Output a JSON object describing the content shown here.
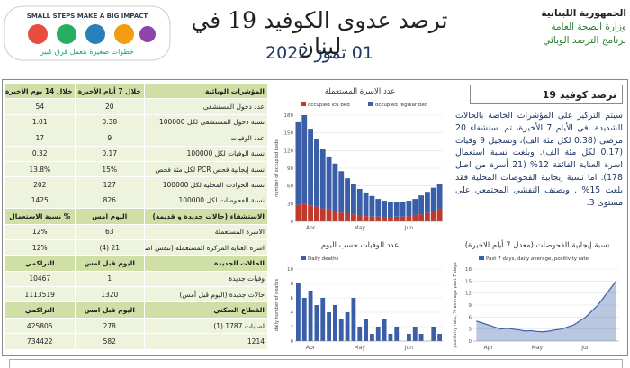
{
  "header": {
    "title": "ترصد عدوى الكوفيد 19 في لبنان",
    "date": "01 تموز 2022",
    "logo_right": [
      "الجمهورية اللبنانية",
      "وزارة الصحة العامة",
      "برنامج الترصد الوبائي"
    ],
    "logo_left": {
      "slogan": "SMALL STEPS MAKE A BIG IMPACT",
      "arabic": "خطوات صغيرة بتعمل فرق كبير"
    }
  },
  "table": {
    "sections": [
      {
        "header": [
          "المؤشرات الوبائية",
          "خلال 7 أيام الأخيرة",
          "خلال 14 يوم الأخيرة"
        ],
        "rows": [
          [
            "عدد دخول المستشفى",
            "20",
            "54"
          ],
          [
            "نسبة دخول المستشفى لكل 100000",
            "0.38",
            "1.01"
          ],
          [
            "عدد الوفيات",
            "9",
            "17"
          ],
          [
            "نسبة الوفيات لكل 100000",
            "0.17",
            "0.32"
          ],
          [
            "نسبة إيجابية فحص PCR لكل مئة فحص",
            "15%",
            "13.8%"
          ],
          [
            "نسبة الحوادث المحلية لكل 100000",
            "127",
            "202"
          ],
          [
            "نسبة الفحوصات لكل 100000",
            "826",
            "1425"
          ]
        ]
      },
      {
        "header": [
          "الاستشفاء (حالات جديدة و قديمة)",
          "اليوم امس",
          "% نسبة الاستعمال"
        ],
        "rows": [
          [
            "الاسرة المستعملة",
            "63",
            "12%"
          ],
          [
            "اسرة العناية المركزة المستعملة (تنفس اصطناعي)",
            "21 (4)",
            "12%"
          ]
        ]
      },
      {
        "header": [
          "الحالات الجديدة",
          "اليوم قبل امس",
          "التراكمي"
        ],
        "rows": [
          [
            "وفيات جديدة",
            "1",
            "10467"
          ],
          [
            "حالات جديدة (اليوم قبل أمس)",
            "1320",
            "1113519"
          ]
        ]
      },
      {
        "header": [
          "القطاع السكني",
          "اليوم قبل امس",
          "التراكمي"
        ],
        "rows": [
          [
            "اصابات 1787 (1)",
            "278",
            "425805"
          ],
          [
            "1214",
            "582",
            "734422"
          ]
        ]
      }
    ]
  },
  "summary": {
    "title": "ترصد كوفيد 19",
    "text": "سيتم التركيز على المؤشرات الخاصة بالحالات الشديدة. في الأيام 7 الأخيرة، تم استشفاء 20 مرضى (0.38 لكل مئة الف)، وتسجيل 9 وفيات (0.17 لكل مئة الف). وبلغت نسبة استعمال اسرة العناية الفائقة 12% (21 أسرة من اصل 178). اما نسبة إيجابية الفحوصات المحلية فقد بلغت 15% . ويصنف التفشي المجتمعي على مستوى 3."
  },
  "chart_data": [
    {
      "type": "stacked-bar",
      "title": "عدد الاسرة المستعملة",
      "y_label": "number of occupied beds",
      "categories": [
        null,
        null,
        "Apr",
        null,
        null,
        null,
        null,
        null,
        null,
        null,
        "May",
        null,
        null,
        null,
        null,
        null,
        null,
        null,
        "Jun",
        null,
        null,
        null,
        null,
        null
      ],
      "series": [
        {
          "name": "occupied icu bed",
          "color": "#c0392b",
          "values": [
            28,
            30,
            27,
            25,
            22,
            20,
            18,
            15,
            13,
            12,
            10,
            9,
            8,
            8,
            7,
            7,
            8,
            8,
            9,
            10,
            12,
            14,
            17,
            20
          ]
        },
        {
          "name": "occupied regular bed",
          "color": "#3a5fa8",
          "values": [
            140,
            150,
            130,
            115,
            100,
            90,
            80,
            70,
            60,
            52,
            45,
            40,
            35,
            30,
            28,
            25,
            24,
            25,
            26,
            28,
            32,
            36,
            40,
            43
          ]
        }
      ],
      "ylim": [
        0,
        180
      ],
      "yticks": [
        0,
        30,
        60,
        90,
        120,
        150,
        180
      ]
    },
    {
      "type": "bar",
      "title": "عدد الوفيات حسب اليوم",
      "y_label": "daily number of deaths",
      "categories": [
        null,
        null,
        "Apr",
        null,
        null,
        null,
        null,
        null,
        null,
        null,
        "May",
        null,
        null,
        null,
        null,
        null,
        null,
        null,
        "Jun",
        null,
        null,
        null,
        null,
        null
      ],
      "series": [
        {
          "name": "Daily deaths",
          "color": "#3a5fa8",
          "values": [
            8,
            6,
            7,
            5,
            6,
            4,
            5,
            3,
            4,
            6,
            2,
            3,
            1,
            2,
            3,
            1,
            2,
            0,
            1,
            2,
            1,
            0,
            2,
            1
          ]
        }
      ],
      "ylim": [
        0,
        10
      ],
      "yticks": [
        0,
        2,
        4,
        6,
        8,
        10
      ]
    },
    {
      "type": "area",
      "title": "نسبة إيجابية الفحوصات (معدل 7 أيام الاخيرة)",
      "y_label": "positivity rate, % average past 7 days",
      "categories": [
        null,
        null,
        "Apr",
        null,
        null,
        null,
        null,
        null,
        null,
        null,
        "May",
        null,
        null,
        null,
        null,
        null,
        null,
        null,
        "Jun",
        null,
        null,
        null,
        null,
        null
      ],
      "series": [
        {
          "name": "Past 7 days, daily average, positivity rate",
          "color": "#3a5fa8",
          "values": [
            5,
            4.5,
            4,
            3.5,
            3,
            3.2,
            3,
            2.8,
            2.5,
            2.6,
            2.4,
            2.3,
            2.5,
            2.8,
            3,
            3.5,
            4,
            5,
            6,
            7.5,
            9,
            11,
            13,
            15
          ]
        }
      ],
      "ylim": [
        0,
        18
      ],
      "yticks": [
        0,
        3,
        6,
        9,
        12,
        15,
        18
      ]
    }
  ]
}
